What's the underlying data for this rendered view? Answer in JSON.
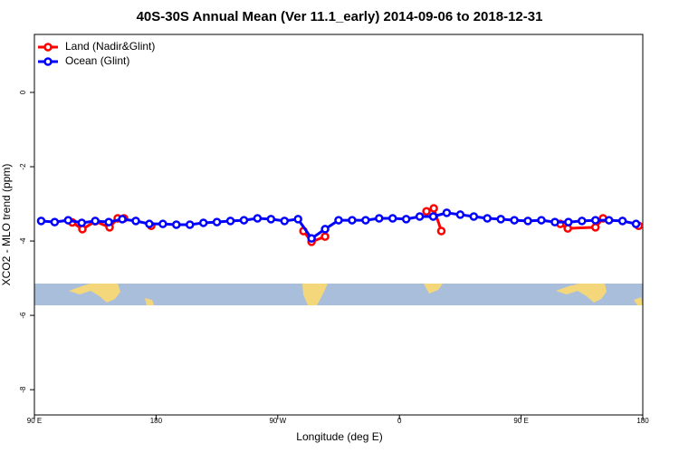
{
  "chart_data": {
    "type": "line",
    "title": "40S-30S Annual Mean (Ver 11.1_early)   2014-09-06 to 2018-12-31",
    "x_label": "Longitude (deg E)",
    "y_label": "XCO2 - MLO trend (ppm)",
    "xlim": [
      90,
      540
    ],
    "ylim": [
      1.56,
      -8.68
    ],
    "xticks": [
      {
        "value": 90,
        "label": "90 E"
      },
      180,
      {
        "value": 270,
        "label": "90 W"
      },
      {
        "value": 360,
        "label": "0"
      },
      {
        "value": 450,
        "label": "90 E"
      },
      {
        "value": 540,
        "label": "180"
      }
    ],
    "yticks": [
      0,
      -2,
      -4,
      -6,
      -8
    ],
    "legend": "top-left",
    "series": [
      {
        "name": "Land (Nadir&Glint)",
        "color": "#ff0000",
        "x": [
          118,
          125.5,
          135,
          145.6,
          151.6,
          156.3,
          null,
          176.4,
          null,
          289,
          295,
          305,
          null,
          380,
          385.4,
          391,
          null,
          479,
          484.5,
          505,
          510.6,
          null,
          537
        ],
        "values": [
          -3.5,
          -3.68,
          -3.47,
          -3.63,
          -3.39,
          -3.39,
          null,
          -3.59,
          null,
          -3.73,
          -4.02,
          -3.88,
          null,
          -3.2,
          -3.12,
          -3.73,
          null,
          -3.54,
          -3.66,
          -3.63,
          -3.39,
          null,
          -3.59
        ]
      },
      {
        "name": "Ocean (Glint)",
        "color": "#0000ff",
        "x": [
          95,
          105,
          115,
          125,
          135,
          145,
          155,
          165,
          175,
          185,
          195,
          205,
          215,
          225,
          235,
          245,
          255,
          265,
          275,
          285,
          295,
          305,
          315,
          325,
          335,
          345,
          355,
          365,
          375,
          385,
          395,
          405,
          415,
          425,
          435,
          445,
          455,
          465,
          475,
          485,
          495,
          505,
          515,
          525,
          535
        ],
        "values": [
          -3.46,
          -3.49,
          -3.44,
          -3.51,
          -3.46,
          -3.49,
          -3.41,
          -3.46,
          -3.54,
          -3.54,
          -3.56,
          -3.56,
          -3.51,
          -3.49,
          -3.46,
          -3.44,
          -3.39,
          -3.41,
          -3.46,
          -3.41,
          -3.93,
          -3.68,
          -3.44,
          -3.44,
          -3.44,
          -3.39,
          -3.39,
          -3.41,
          -3.34,
          -3.34,
          -3.24,
          -3.29,
          -3.34,
          -3.39,
          -3.41,
          -3.44,
          -3.46,
          -3.44,
          -3.49,
          -3.49,
          -3.46,
          -3.44,
          -3.44,
          -3.46,
          -3.54
        ]
      }
    ]
  }
}
